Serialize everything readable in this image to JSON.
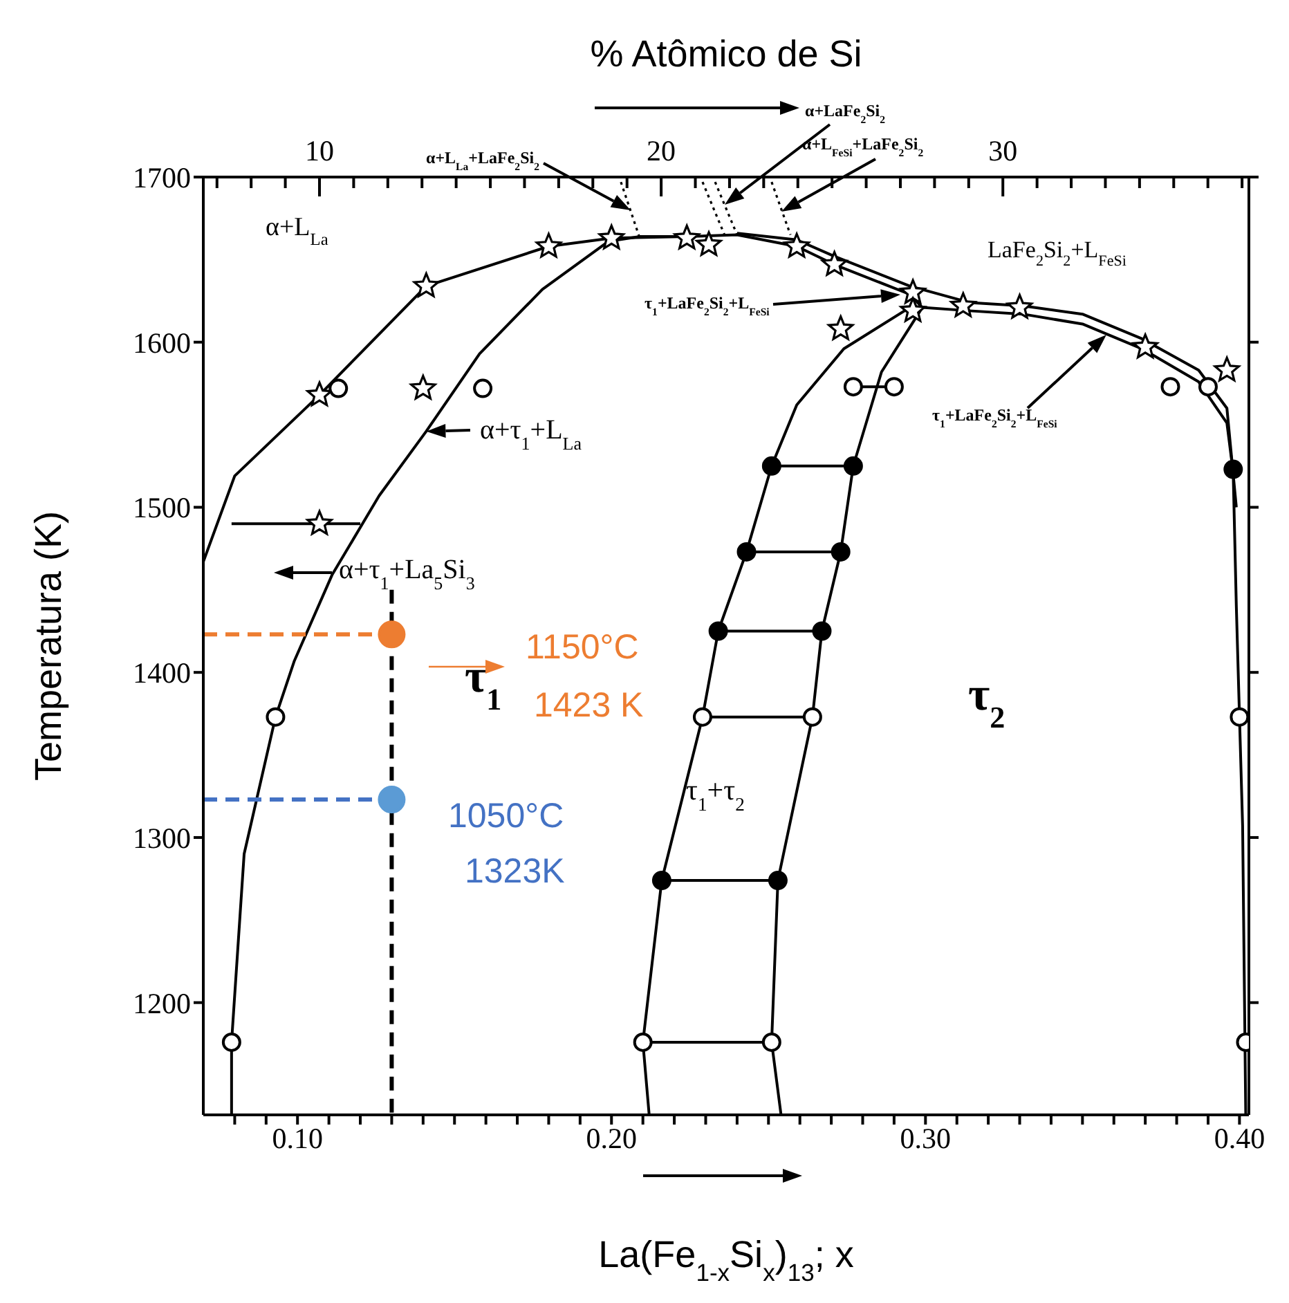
{
  "chart_data": {
    "type": "line",
    "xlabel": "La(Fe$_{1-x}$Si$_{x}$)$_{13}$; x",
    "ylabel": "Temperatura (K)",
    "x2label": "% Atômico de Si",
    "xlim": [
      0.07,
      0.403
    ],
    "ylim": [
      1132,
      1700
    ],
    "x2lim": [
      6.6,
      37.2
    ],
    "xticks": [
      {
        "value": 0.08,
        "label": null
      },
      {
        "value": 0.09,
        "label": null
      },
      {
        "value": 0.1,
        "label": "0.10"
      },
      {
        "value": 0.11,
        "label": null
      },
      {
        "value": 0.12,
        "label": null
      },
      {
        "value": 0.13,
        "label": null
      },
      {
        "value": 0.14,
        "label": null
      },
      {
        "value": 0.15,
        "label": null
      },
      {
        "value": 0.16,
        "label": null
      },
      {
        "value": 0.17,
        "label": null
      },
      {
        "value": 0.18,
        "label": null
      },
      {
        "value": 0.19,
        "label": null
      },
      {
        "value": 0.2,
        "label": "0.20"
      },
      {
        "value": 0.21,
        "label": null
      },
      {
        "value": 0.22,
        "label": null
      },
      {
        "value": 0.23,
        "label": null
      },
      {
        "value": 0.24,
        "label": null
      },
      {
        "value": 0.25,
        "label": null
      },
      {
        "value": 0.26,
        "label": null
      },
      {
        "value": 0.27,
        "label": null
      },
      {
        "value": 0.28,
        "label": null
      },
      {
        "value": 0.29,
        "label": null
      },
      {
        "value": 0.3,
        "label": "0.30"
      },
      {
        "value": 0.31,
        "label": null
      },
      {
        "value": 0.32,
        "label": null
      },
      {
        "value": 0.33,
        "label": null
      },
      {
        "value": 0.34,
        "label": null
      },
      {
        "value": 0.35,
        "label": null
      },
      {
        "value": 0.36,
        "label": null
      },
      {
        "value": 0.37,
        "label": null
      },
      {
        "value": 0.38,
        "label": null
      },
      {
        "value": 0.39,
        "label": null
      },
      {
        "value": 0.4,
        "label": "0.40"
      }
    ],
    "x2ticks": [
      {
        "value": 7,
        "label": null
      },
      {
        "value": 8,
        "label": null
      },
      {
        "value": 9,
        "label": null
      },
      10,
      {
        "value": 11,
        "label": null
      },
      {
        "value": 12,
        "label": null
      },
      {
        "value": 13,
        "label": null
      },
      {
        "value": 14,
        "label": null
      },
      {
        "value": 15,
        "label": null
      },
      {
        "value": 16,
        "label": null
      },
      {
        "value": 17,
        "label": null
      },
      {
        "value": 18,
        "label": null
      },
      {
        "value": 19,
        "label": null
      },
      20,
      {
        "value": 21,
        "label": null
      },
      {
        "value": 22,
        "label": null
      },
      {
        "value": 23,
        "label": null
      },
      {
        "value": 24,
        "label": null
      },
      {
        "value": 25,
        "label": null
      },
      {
        "value": 26,
        "label": null
      },
      {
        "value": 27,
        "label": null
      },
      {
        "value": 28,
        "label": null
      },
      {
        "value": 29,
        "label": null
      },
      30,
      {
        "value": 31,
        "label": null
      },
      {
        "value": 32,
        "label": null
      },
      {
        "value": 33,
        "label": null
      },
      {
        "value": 34,
        "label": null
      },
      {
        "value": 35,
        "label": null
      },
      {
        "value": 36,
        "label": null
      },
      {
        "value": 37,
        "label": null
      }
    ],
    "yticks": [
      1200,
      1300,
      1400,
      1500,
      1600,
      1700
    ],
    "series": [
      {
        "color": "#000000",
        "line_style": "solid",
        "x": [
          0.07,
          0.08,
          0.107,
          0.141,
          0.18,
          0.2,
          0.224,
          0.24,
          0.259,
          0.271,
          0.295,
          0.299
        ],
        "values": [
          1467,
          1519,
          1568,
          1634,
          1658,
          1663,
          1664,
          1665,
          1658,
          1647,
          1629,
          1621
        ]
      },
      {
        "color": "#000000",
        "line_style": "solid",
        "x": [
          0.079,
          0.079,
          0.083,
          0.093,
          0.099,
          0.111,
          0.126,
          0.141,
          0.158,
          0.178,
          0.199,
          0.209,
          0.224
        ],
        "values": [
          1132,
          1176,
          1290,
          1373,
          1407,
          1459,
          1507,
          1546,
          1593,
          1632,
          1661,
          1664,
          1664
        ]
      },
      {
        "color": "#000000",
        "line_style": "solid",
        "x": [
          0.299,
          0.314,
          0.331,
          0.35,
          0.369,
          0.387,
          0.396,
          0.398,
          0.399,
          0.401,
          0.402
        ],
        "values": [
          1621,
          1619,
          1617,
          1611,
          1596,
          1576,
          1551,
          1521,
          1440,
          1307,
          1132
        ]
      },
      {
        "color": "#000000",
        "line_style": "solid",
        "x": [
          0.24,
          0.259,
          0.271,
          0.295,
          0.314,
          0.331,
          0.35,
          0.369,
          0.387,
          0.396,
          0.399
        ],
        "values": [
          1666,
          1662,
          1652,
          1634,
          1624,
          1622,
          1617,
          1602,
          1583,
          1560,
          1500
        ]
      },
      {
        "color": "#000000",
        "line_style": "solid",
        "x": [
          0.212,
          0.21,
          0.216,
          0.229,
          0.234,
          0.243,
          0.251,
          0.259,
          0.274,
          0.295
        ],
        "values": [
          1132,
          1176,
          1274,
          1373,
          1425,
          1473,
          1525,
          1562,
          1596,
          1621
        ]
      },
      {
        "color": "#000000",
        "line_style": "solid",
        "x": [
          0.254,
          0.251,
          0.253,
          0.264,
          0.267,
          0.273,
          0.277,
          0.286,
          0.299
        ],
        "values": [
          1132,
          1176,
          1274,
          1373,
          1425,
          1473,
          1525,
          1582,
          1621
        ]
      },
      {
        "color": "#000000",
        "line_style": "solid",
        "x": [
          0.251,
          0.277
        ],
        "values": [
          1525,
          1525
        ]
      },
      {
        "color": "#000000",
        "line_style": "solid",
        "x": [
          0.243,
          0.273
        ],
        "values": [
          1473,
          1473
        ]
      },
      {
        "color": "#000000",
        "line_style": "solid",
        "x": [
          0.234,
          0.267
        ],
        "values": [
          1425,
          1425
        ]
      },
      {
        "color": "#000000",
        "line_style": "solid",
        "x": [
          0.229,
          0.264
        ],
        "values": [
          1373,
          1373
        ]
      },
      {
        "color": "#000000",
        "line_style": "solid",
        "x": [
          0.216,
          0.253
        ],
        "values": [
          1274,
          1274
        ]
      },
      {
        "color": "#000000",
        "line_style": "solid",
        "x": [
          0.21,
          0.251
        ],
        "values": [
          1176,
          1176
        ]
      },
      {
        "color": "#000000",
        "line_style": "solid",
        "x": [
          0.277,
          0.29
        ],
        "values": [
          1573,
          1573
        ]
      },
      {
        "color": "#000000",
        "line_style": "solid",
        "x": [
          0.079,
          0.12
        ],
        "values": [
          1490,
          1490
        ]
      },
      {
        "color": "#000000",
        "line_style": "dotted",
        "x": [
          0.203,
          0.209
        ],
        "values": [
          1697,
          1663
        ]
      },
      {
        "color": "#000000",
        "line_style": "dotted",
        "x": [
          0.229,
          0.236
        ],
        "values": [
          1697,
          1665
        ]
      },
      {
        "color": "#000000",
        "line_style": "dotted",
        "x": [
          0.233,
          0.24
        ],
        "values": [
          1697,
          1665
        ]
      },
      {
        "color": "#000000",
        "line_style": "dotted",
        "x": [
          0.251,
          0.257
        ],
        "values": [
          1697,
          1665
        ]
      },
      {
        "color": "#000000",
        "line_style": "dashed",
        "x": [
          0.13,
          0.13
        ],
        "values": [
          1450,
          1132
        ]
      },
      {
        "color": "#ed7d31",
        "line_style": "dashed",
        "x": [
          0.07,
          0.13
        ],
        "values": [
          1423,
          1423
        ]
      },
      {
        "color": "#4472c4",
        "line_style": "dashed",
        "x": [
          0.07,
          0.13
        ],
        "values": [
          1323,
          1323
        ]
      },
      {
        "type": "scatter",
        "marker": "star",
        "color": "#ffffff",
        "x": [
          0.107,
          0.141,
          0.18,
          0.2,
          0.14,
          0.224,
          0.231,
          0.107,
          0.259,
          0.271,
          0.273,
          0.296,
          0.296,
          0.312,
          0.33,
          0.37,
          0.396
        ],
        "values": [
          1568,
          1634,
          1658,
          1663,
          1572,
          1663,
          1659,
          1490,
          1658,
          1647,
          1608,
          1630,
          1619,
          1622,
          1621,
          1597,
          1583
        ]
      },
      {
        "type": "scatter",
        "marker": "circle",
        "color": "#ffffff",
        "x": [
          0.113,
          0.159,
          0.093,
          0.277,
          0.29,
          0.378,
          0.39,
          0.229,
          0.264,
          0.4,
          0.079,
          0.21,
          0.251,
          0.402
        ],
        "values": [
          1572,
          1572,
          1373,
          1573,
          1573,
          1573,
          1573,
          1373,
          1373,
          1373,
          1176,
          1176,
          1176,
          1176
        ]
      },
      {
        "type": "scatter",
        "marker": "circle",
        "color": "#000000",
        "x": [
          0.251,
          0.277,
          0.398,
          0.243,
          0.273,
          0.234,
          0.267,
          0.216,
          0.253
        ],
        "values": [
          1525,
          1525,
          1523,
          1473,
          1473,
          1425,
          1425,
          1274,
          1274
        ]
      },
      {
        "type": "scatter",
        "marker": "circle",
        "color": "#ed7d31",
        "x": [
          0.13
        ],
        "values": [
          1423
        ]
      },
      {
        "type": "scatter",
        "marker": "circle",
        "color": "#5b9bd5",
        "x": [
          0.13
        ],
        "values": [
          1323
        ]
      }
    ],
    "annotations": [
      "α+L$_{La}$",
      {
        "text": "α+τ$_{1}$+L$_{La}$",
        "x": 0.141,
        "y": 1546
      },
      "α+τ$_{1}$+La$_{5}$Si$_{3}$",
      "τ$_{1}$",
      "1150°C",
      "1423 K",
      "1050°C",
      "1323K",
      "τ$_{1}$+τ$_{2}$",
      "τ$_{2}$",
      "LaFe$_{2}$Si$_{2}$+L$_{FeSi}$",
      "τ$_{1}$+LaFe$_{2}$Si$_{2}$+L$_{FeSi}$",
      "τ$_{1}$+LaFe$_{2}$Si$_{2}$+L$_{FeSi}$",
      "α+L$_{La}$+LaFe$_{2}$Si$_{2}$",
      "α+LaFe$_{2}$Si$_{2}$",
      "α+L$_{FeSi}$+LaFe$_{2}$Si$_{2}$"
    ]
  }
}
